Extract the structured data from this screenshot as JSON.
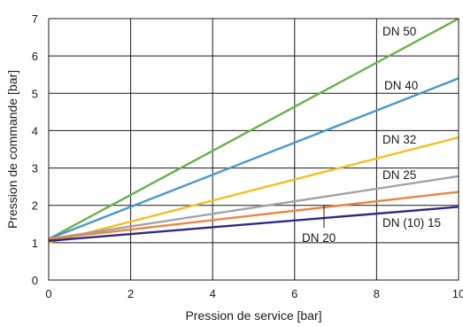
{
  "chart_data": {
    "type": "line",
    "title": "",
    "xlabel": "Pression de service [bar]",
    "ylabel": "Pression de commande [bar]",
    "xlim": [
      0,
      10
    ],
    "ylim": [
      0,
      7
    ],
    "xticks": [
      0,
      2,
      4,
      6,
      8,
      10
    ],
    "yticks": [
      0,
      1,
      2,
      3,
      4,
      5,
      6,
      7
    ],
    "grid": true,
    "legend": "none",
    "series": [
      {
        "name": "DN 50",
        "color": "#6ab04c",
        "x": [
          0,
          10
        ],
        "y": [
          1.1,
          7.0
        ]
      },
      {
        "name": "DN 40",
        "color": "#4a98cb",
        "x": [
          0,
          10
        ],
        "y": [
          1.1,
          5.4
        ]
      },
      {
        "name": "DN 32",
        "color": "#f2c01e",
        "x": [
          0,
          10
        ],
        "y": [
          1.0,
          3.82
        ]
      },
      {
        "name": "DN 25",
        "color": "#a3a3a3",
        "x": [
          0,
          10
        ],
        "y": [
          1.1,
          2.78
        ]
      },
      {
        "name": "DN 20",
        "color": "#ec8444",
        "x": [
          0,
          10
        ],
        "y": [
          1.1,
          2.36
        ]
      },
      {
        "name": "DN (10) 15",
        "color": "#2e2a85",
        "x": [
          0,
          10
        ],
        "y": [
          1.05,
          1.96
        ]
      }
    ]
  }
}
